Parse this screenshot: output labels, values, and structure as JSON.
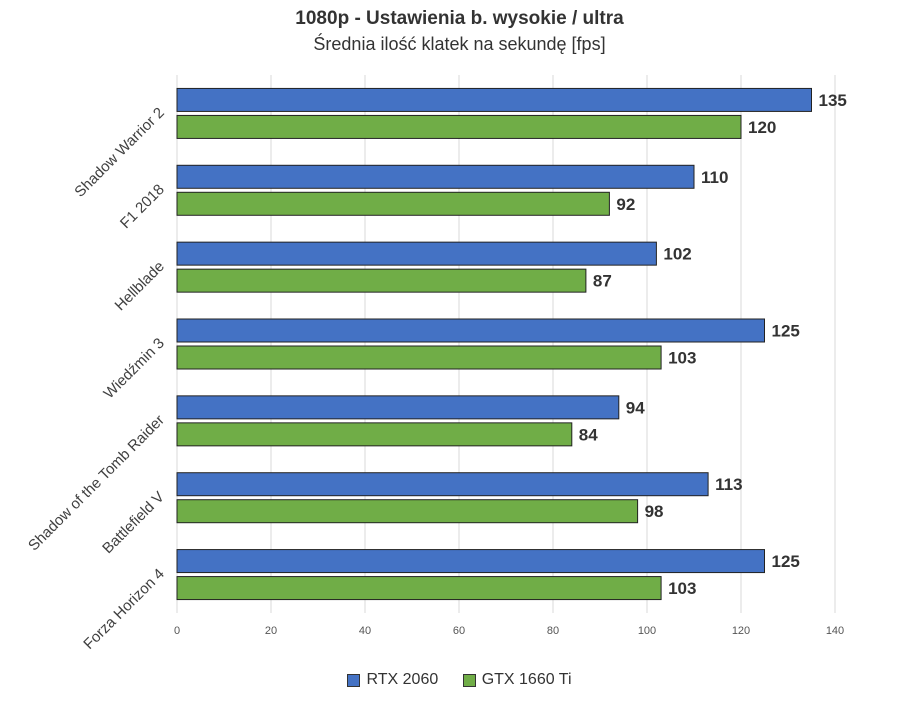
{
  "chart_data": {
    "type": "bar",
    "orientation": "horizontal",
    "title": "1080p - Ustawienia b. wysokie / ultra",
    "subtitle": "Średnia ilość klatek na sekundę [fps]",
    "categories": [
      "Shadow Warrior 2",
      "F1 2018",
      "Hellblade",
      "Wiedźmin 3",
      "Shadow of the Tomb Raider",
      "Battlefield V",
      "Forza Horizon 4"
    ],
    "series": [
      {
        "name": "RTX 2060",
        "color": "#4472C4",
        "values": [
          135,
          110,
          102,
          125,
          94,
          113,
          125
        ]
      },
      {
        "name": "GTX 1660 Ti",
        "color": "#70AD47",
        "values": [
          120,
          92,
          87,
          103,
          84,
          98,
          103
        ]
      }
    ],
    "xlim": [
      0,
      140
    ],
    "xticks": [
      0,
      20,
      40,
      60,
      80,
      100,
      120,
      140
    ],
    "grid": "vertical",
    "legend_position": "bottom"
  }
}
